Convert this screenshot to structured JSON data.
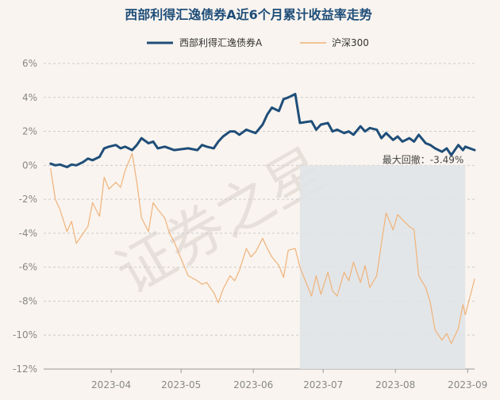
{
  "chart_data": {
    "type": "line",
    "title": "西部利得汇逸债券A近6个月累计收益率走势",
    "xlabel": "",
    "ylabel": "",
    "y_unit": "%",
    "ylim": [
      -12,
      6
    ],
    "y_ticks": [
      6,
      4,
      2,
      0,
      -2,
      -4,
      -6,
      -8,
      -10,
      -12
    ],
    "y_tick_labels": [
      "6%",
      "4%",
      "2%",
      "0%",
      "-2%",
      "-4%",
      "-6%",
      "-8%",
      "-10%",
      "-12%"
    ],
    "x_ticks": [
      "2023-04",
      "2023-05",
      "2023-06",
      "2023-07",
      "2023-08",
      "2023-09"
    ],
    "legend_position": "top-center",
    "grid": "horizontal-dashed",
    "colors": {
      "series_fund": "#1f4e79",
      "series_index": "#f0b27a",
      "drawdown_fill": "#dfe3e6",
      "title": "#1f4e79",
      "axis_text": "#888888",
      "annotation_text": "#444444",
      "watermark": "#d9d1c9"
    },
    "watermark_text": "证券之星",
    "annotation": "最大回撤：-3.49%",
    "max_drawdown": -3.49,
    "drawdown_range": [
      "2023-06-21",
      "2023-08-31"
    ],
    "series": [
      {
        "name": "西部利得汇逸债券A",
        "x": [
          "2023-03-06",
          "2023-03-08",
          "2023-03-10",
          "2023-03-13",
          "2023-03-15",
          "2023-03-17",
          "2023-03-20",
          "2023-03-22",
          "2023-03-24",
          "2023-03-27",
          "2023-03-29",
          "2023-03-31",
          "2023-04-03",
          "2023-04-05",
          "2023-04-07",
          "2023-04-10",
          "2023-04-12",
          "2023-04-14",
          "2023-04-17",
          "2023-04-19",
          "2023-04-21",
          "2023-04-24",
          "2023-04-26",
          "2023-04-28",
          "2023-05-04",
          "2023-05-08",
          "2023-05-10",
          "2023-05-12",
          "2023-05-15",
          "2023-05-17",
          "2023-05-19",
          "2023-05-22",
          "2023-05-24",
          "2023-05-26",
          "2023-05-29",
          "2023-05-31",
          "2023-06-02",
          "2023-06-05",
          "2023-06-07",
          "2023-06-09",
          "2023-06-12",
          "2023-06-14",
          "2023-06-16",
          "2023-06-19",
          "2023-06-21",
          "2023-06-26",
          "2023-06-28",
          "2023-06-30",
          "2023-07-03",
          "2023-07-05",
          "2023-07-07",
          "2023-07-10",
          "2023-07-12",
          "2023-07-14",
          "2023-07-17",
          "2023-07-19",
          "2023-07-21",
          "2023-07-24",
          "2023-07-26",
          "2023-07-28",
          "2023-07-31",
          "2023-08-02",
          "2023-08-04",
          "2023-08-07",
          "2023-08-09",
          "2023-08-11",
          "2023-08-14",
          "2023-08-16",
          "2023-08-18",
          "2023-08-21",
          "2023-08-23",
          "2023-08-25",
          "2023-08-28",
          "2023-08-30",
          "2023-08-31",
          "2023-09-04"
        ],
        "values": [
          0.1,
          0.0,
          0.05,
          -0.1,
          0.05,
          0.0,
          0.2,
          0.4,
          0.3,
          0.5,
          1.0,
          1.1,
          1.2,
          1.0,
          1.1,
          0.9,
          1.2,
          1.6,
          1.3,
          1.4,
          1.0,
          1.1,
          1.0,
          0.9,
          1.0,
          0.9,
          1.2,
          1.1,
          1.0,
          1.4,
          1.7,
          2.0,
          2.0,
          1.8,
          2.1,
          2.0,
          1.9,
          2.4,
          3.0,
          3.4,
          3.2,
          3.9,
          4.0,
          4.2,
          2.5,
          2.6,
          2.1,
          2.4,
          2.5,
          2.0,
          2.1,
          1.9,
          2.0,
          1.8,
          2.3,
          2.0,
          2.2,
          2.1,
          1.6,
          1.9,
          1.5,
          1.7,
          1.4,
          1.6,
          1.4,
          1.8,
          1.3,
          1.2,
          1.0,
          0.8,
          1.0,
          0.6,
          1.2,
          0.9,
          1.1,
          0.9
        ]
      },
      {
        "name": "沪深300",
        "x": [
          "2023-03-06",
          "2023-03-08",
          "2023-03-10",
          "2023-03-13",
          "2023-03-15",
          "2023-03-17",
          "2023-03-20",
          "2023-03-22",
          "2023-03-24",
          "2023-03-27",
          "2023-03-29",
          "2023-03-31",
          "2023-04-03",
          "2023-04-05",
          "2023-04-07",
          "2023-04-10",
          "2023-04-12",
          "2023-04-14",
          "2023-04-17",
          "2023-04-19",
          "2023-04-21",
          "2023-04-24",
          "2023-04-26",
          "2023-04-28",
          "2023-05-04",
          "2023-05-08",
          "2023-05-10",
          "2023-05-12",
          "2023-05-15",
          "2023-05-17",
          "2023-05-19",
          "2023-05-22",
          "2023-05-24",
          "2023-05-26",
          "2023-05-29",
          "2023-05-31",
          "2023-06-02",
          "2023-06-05",
          "2023-06-07",
          "2023-06-09",
          "2023-06-12",
          "2023-06-14",
          "2023-06-16",
          "2023-06-19",
          "2023-06-21",
          "2023-06-26",
          "2023-06-28",
          "2023-06-30",
          "2023-07-03",
          "2023-07-05",
          "2023-07-07",
          "2023-07-10",
          "2023-07-12",
          "2023-07-14",
          "2023-07-17",
          "2023-07-19",
          "2023-07-21",
          "2023-07-24",
          "2023-07-26",
          "2023-07-28",
          "2023-07-31",
          "2023-08-02",
          "2023-08-04",
          "2023-08-07",
          "2023-08-09",
          "2023-08-11",
          "2023-08-14",
          "2023-08-16",
          "2023-08-18",
          "2023-08-21",
          "2023-08-23",
          "2023-08-25",
          "2023-08-28",
          "2023-08-30",
          "2023-08-31",
          "2023-09-04"
        ],
        "values": [
          -0.2,
          -2.0,
          -2.6,
          -3.9,
          -3.3,
          -4.6,
          -4.0,
          -3.6,
          -2.2,
          -3.0,
          -0.7,
          -1.4,
          -1.0,
          -1.3,
          -0.3,
          0.7,
          -1.0,
          -3.1,
          -3.9,
          -2.2,
          -2.6,
          -3.1,
          -4.0,
          -4.5,
          -6.5,
          -6.8,
          -7.0,
          -6.9,
          -7.5,
          -8.1,
          -7.3,
          -6.5,
          -6.8,
          -6.2,
          -4.9,
          -5.4,
          -5.1,
          -4.3,
          -4.9,
          -5.4,
          -5.9,
          -6.6,
          -5.0,
          -4.9,
          -6.0,
          -7.7,
          -6.5,
          -7.6,
          -6.3,
          -7.4,
          -7.7,
          -6.3,
          -6.8,
          -5.7,
          -6.9,
          -5.9,
          -7.2,
          -6.5,
          -4.6,
          -2.8,
          -3.8,
          -2.9,
          -3.2,
          -3.6,
          -3.8,
          -6.5,
          -7.2,
          -8.1,
          -9.7,
          -10.3,
          -9.9,
          -10.5,
          -9.6,
          -8.2,
          -8.8,
          -6.7
        ]
      }
    ]
  }
}
